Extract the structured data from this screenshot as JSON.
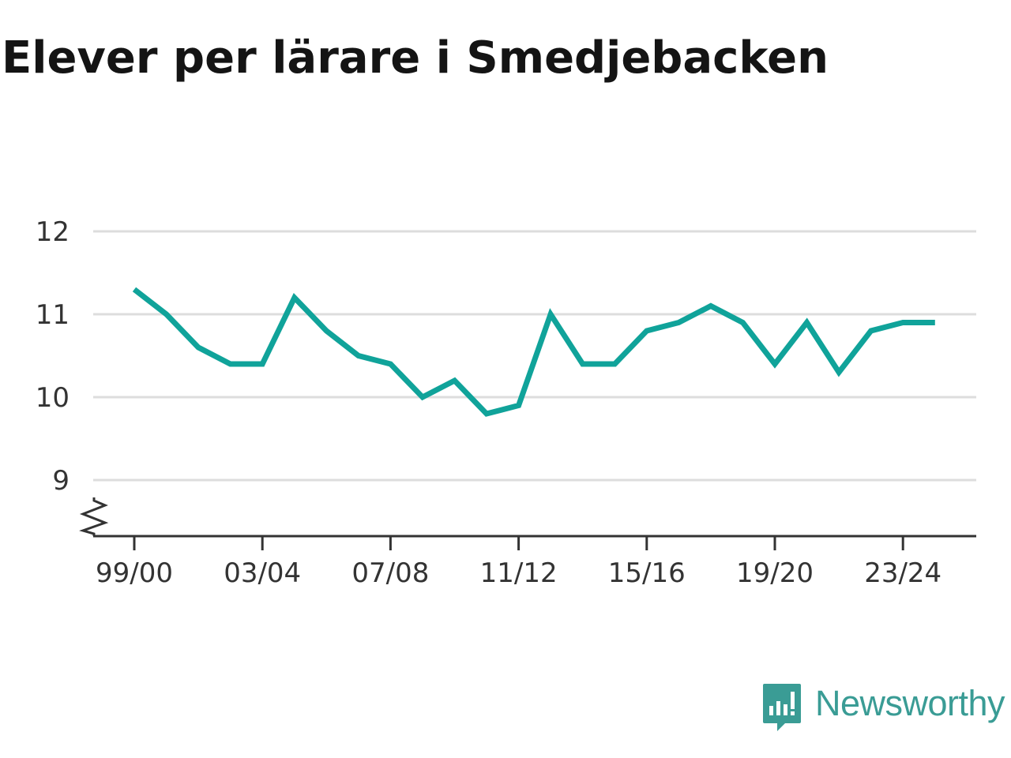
{
  "title": "Elever per lärare i Smedjebacken",
  "brand": {
    "name": "Newsworthy",
    "color": "#3a9c95",
    "icon": "bar-chart-speech-bubble-icon"
  },
  "chart_data": {
    "type": "line",
    "title": "Elever per lärare i Smedjebacken",
    "xlabel": "",
    "ylabel": "",
    "x": [
      "99/00",
      "00/01",
      "01/02",
      "02/03",
      "03/04",
      "04/05",
      "05/06",
      "06/07",
      "07/08",
      "08/09",
      "09/10",
      "10/11",
      "11/12",
      "12/13",
      "13/14",
      "14/15",
      "15/16",
      "16/17",
      "17/18",
      "18/19",
      "19/20",
      "20/21",
      "21/22",
      "22/23",
      "23/24",
      "24/25"
    ],
    "x_tick_labels": [
      "99/00",
      "03/04",
      "07/08",
      "11/12",
      "15/16",
      "19/20",
      "23/24"
    ],
    "series": [
      {
        "color": "#10a39a",
        "values": [
          11.3,
          11.0,
          10.6,
          10.4,
          10.4,
          11.2,
          10.8,
          10.5,
          10.4,
          10.0,
          10.2,
          9.8,
          9.9,
          11.0,
          10.4,
          10.4,
          10.8,
          10.9,
          11.1,
          10.9,
          10.4,
          10.9,
          10.3,
          10.8,
          10.9,
          10.9
        ]
      }
    ],
    "y_ticks": [
      9,
      10,
      11,
      12
    ],
    "ylim": [
      8.3,
      12
    ],
    "y_axis_break": true,
    "grid": true,
    "grid_color": "#dddddd",
    "legend": "none"
  }
}
